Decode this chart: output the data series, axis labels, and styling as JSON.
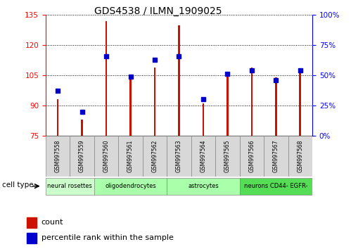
{
  "title": "GDS4538 / ILMN_1909025",
  "samples": [
    "GSM997558",
    "GSM997559",
    "GSM997560",
    "GSM997561",
    "GSM997562",
    "GSM997563",
    "GSM997564",
    "GSM997565",
    "GSM997566",
    "GSM997567",
    "GSM997568"
  ],
  "count_values": [
    93,
    83,
    132,
    105,
    109,
    130,
    91,
    105,
    109,
    104,
    108
  ],
  "percentile_values": [
    37,
    20,
    66,
    49,
    63,
    66,
    30,
    51,
    54,
    46,
    54
  ],
  "cell_types": [
    {
      "label": "neural rosettes",
      "spans": [
        0,
        1
      ],
      "color": "#ccffcc"
    },
    {
      "label": "oligodendrocytes",
      "spans": [
        2,
        4
      ],
      "color": "#aaffaa"
    },
    {
      "label": "astrocytes",
      "spans": [
        5,
        7
      ],
      "color": "#aaffaa"
    },
    {
      "label": "neurons CD44- EGFR-",
      "spans": [
        8,
        10
      ],
      "color": "#55dd55"
    }
  ],
  "ylim_left": [
    75,
    135
  ],
  "ylim_right": [
    0,
    100
  ],
  "yticks_left": [
    75,
    90,
    105,
    120,
    135
  ],
  "yticks_right": [
    0,
    25,
    50,
    75,
    100
  ],
  "bar_color": "#cc1100",
  "dot_color": "#0000cc",
  "background_color": "#ffffff",
  "plot_bg": "#ffffff",
  "bar_width": 0.08
}
